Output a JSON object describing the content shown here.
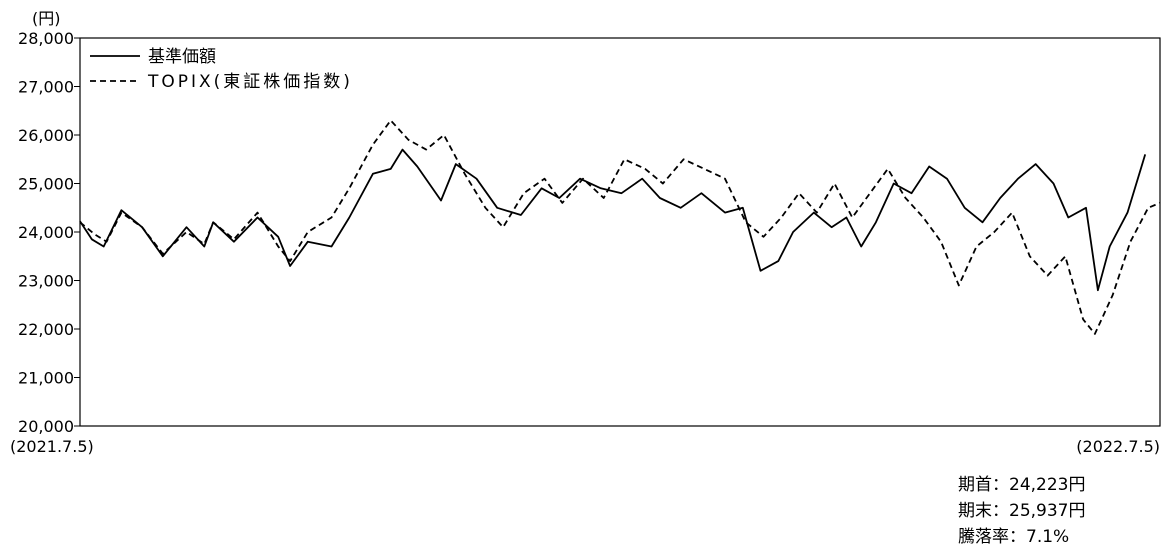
{
  "chart_data": {
    "type": "line",
    "ylabel": "(円)",
    "ylim": [
      20000,
      28000
    ],
    "yticks": [
      {
        "value": 20000,
        "label": "20,000"
      },
      {
        "value": 21000,
        "label": "21,000"
      },
      {
        "value": 22000,
        "label": "22,000"
      },
      {
        "value": 23000,
        "label": "23,000"
      },
      {
        "value": 24000,
        "label": "24,000"
      },
      {
        "value": 25000,
        "label": "25,000"
      },
      {
        "value": 26000,
        "label": "26,000"
      },
      {
        "value": 27000,
        "label": "27,000"
      },
      {
        "value": 28000,
        "label": "28,000"
      }
    ],
    "xlim": [
      "2021-07-05",
      "2022-07-05"
    ],
    "x_start_label": "(2021.7.5)",
    "x_end_label": "(2022.7.5)",
    "grid": false,
    "legend_position": "top-left",
    "series": [
      {
        "name": "基準価額",
        "style": "solid",
        "color": "#000000",
        "points": [
          [
            "2021-07-05",
            24223
          ],
          [
            "2021-07-09",
            23850
          ],
          [
            "2021-07-13",
            23700
          ],
          [
            "2021-07-19",
            24450
          ],
          [
            "2021-07-26",
            24100
          ],
          [
            "2021-08-02",
            23500
          ],
          [
            "2021-08-10",
            24100
          ],
          [
            "2021-08-16",
            23700
          ],
          [
            "2021-08-19",
            24200
          ],
          [
            "2021-08-26",
            23800
          ],
          [
            "2021-09-03",
            24300
          ],
          [
            "2021-09-10",
            23900
          ],
          [
            "2021-09-14",
            23300
          ],
          [
            "2021-09-20",
            23800
          ],
          [
            "2021-09-28",
            23700
          ],
          [
            "2021-10-04",
            24300
          ],
          [
            "2021-10-12",
            25200
          ],
          [
            "2021-10-18",
            25300
          ],
          [
            "2021-10-22",
            25700
          ],
          [
            "2021-10-27",
            25350
          ],
          [
            "2021-11-04",
            24650
          ],
          [
            "2021-11-09",
            25400
          ],
          [
            "2021-11-16",
            25100
          ],
          [
            "2021-11-23",
            24500
          ],
          [
            "2021-12-01",
            24350
          ],
          [
            "2021-12-08",
            24900
          ],
          [
            "2021-12-14",
            24700
          ],
          [
            "2021-12-21",
            25100
          ],
          [
            "2021-12-28",
            24900
          ],
          [
            "2022-01-04",
            24800
          ],
          [
            "2022-01-11",
            25100
          ],
          [
            "2022-01-17",
            24700
          ],
          [
            "2022-01-24",
            24500
          ],
          [
            "2022-01-31",
            24800
          ],
          [
            "2022-02-08",
            24400
          ],
          [
            "2022-02-14",
            24500
          ],
          [
            "2022-02-20",
            23200
          ],
          [
            "2022-02-26",
            23400
          ],
          [
            "2022-03-03",
            24000
          ],
          [
            "2022-03-10",
            24400
          ],
          [
            "2022-03-16",
            24100
          ],
          [
            "2022-03-21",
            24300
          ],
          [
            "2022-03-26",
            23700
          ],
          [
            "2022-03-31",
            24200
          ],
          [
            "2022-04-06",
            25000
          ],
          [
            "2022-04-12",
            24800
          ],
          [
            "2022-04-18",
            25350
          ],
          [
            "2022-04-24",
            25100
          ],
          [
            "2022-04-30",
            24500
          ],
          [
            "2022-05-06",
            24200
          ],
          [
            "2022-05-12",
            24700
          ],
          [
            "2022-05-18",
            25100
          ],
          [
            "2022-05-24",
            25400
          ],
          [
            "2022-05-30",
            25000
          ],
          [
            "2022-06-04",
            24300
          ],
          [
            "2022-06-10",
            24500
          ],
          [
            "2022-06-14",
            22800
          ],
          [
            "2022-06-18",
            23700
          ],
          [
            "2022-06-24",
            24400
          ],
          [
            "2022-06-30",
            25600
          ]
        ]
      },
      {
        "name": "TOPIX(東証株価指数)",
        "style": "dashed",
        "color": "#000000",
        "points": [
          [
            "2021-07-05",
            24200
          ],
          [
            "2021-07-10",
            23950
          ],
          [
            "2021-07-14",
            23800
          ],
          [
            "2021-07-19",
            24400
          ],
          [
            "2021-07-26",
            24100
          ],
          [
            "2021-08-02",
            23550
          ],
          [
            "2021-08-10",
            24000
          ],
          [
            "2021-08-16",
            23750
          ],
          [
            "2021-08-19",
            24200
          ],
          [
            "2021-08-26",
            23850
          ],
          [
            "2021-09-03",
            24400
          ],
          [
            "2021-09-10",
            23700
          ],
          [
            "2021-09-14",
            23400
          ],
          [
            "2021-09-20",
            24000
          ],
          [
            "2021-09-28",
            24300
          ],
          [
            "2021-10-04",
            24900
          ],
          [
            "2021-10-12",
            25800
          ],
          [
            "2021-10-18",
            26300
          ],
          [
            "2021-10-24",
            25900
          ],
          [
            "2021-10-30",
            25700
          ],
          [
            "2021-11-05",
            26000
          ],
          [
            "2021-11-12",
            25200
          ],
          [
            "2021-11-19",
            24500
          ],
          [
            "2021-11-25",
            24100
          ],
          [
            "2021-12-02",
            24800
          ],
          [
            "2021-12-09",
            25100
          ],
          [
            "2021-12-15",
            24600
          ],
          [
            "2021-12-22",
            25100
          ],
          [
            "2021-12-29",
            24700
          ],
          [
            "2022-01-05",
            25500
          ],
          [
            "2022-01-12",
            25300
          ],
          [
            "2022-01-18",
            25000
          ],
          [
            "2022-01-25",
            25500
          ],
          [
            "2022-02-01",
            25300
          ],
          [
            "2022-02-08",
            25100
          ],
          [
            "2022-02-15",
            24200
          ],
          [
            "2022-02-21",
            23900
          ],
          [
            "2022-02-27",
            24300
          ],
          [
            "2022-03-05",
            24800
          ],
          [
            "2022-03-11",
            24400
          ],
          [
            "2022-03-17",
            25000
          ],
          [
            "2022-03-23",
            24300
          ],
          [
            "2022-03-29",
            24800
          ],
          [
            "2022-04-04",
            25300
          ],
          [
            "2022-04-10",
            24700
          ],
          [
            "2022-04-16",
            24300
          ],
          [
            "2022-04-22",
            23800
          ],
          [
            "2022-04-28",
            22900
          ],
          [
            "2022-05-04",
            23700
          ],
          [
            "2022-05-10",
            24000
          ],
          [
            "2022-05-16",
            24400
          ],
          [
            "2022-05-22",
            23500
          ],
          [
            "2022-05-28",
            23100
          ],
          [
            "2022-06-03",
            23500
          ],
          [
            "2022-06-09",
            22200
          ],
          [
            "2022-06-13",
            21900
          ],
          [
            "2022-06-19",
            22700
          ],
          [
            "2022-06-25",
            23800
          ],
          [
            "2022-07-01",
            24500
          ],
          [
            "2022-07-05",
            24600
          ]
        ]
      }
    ],
    "annotations": [
      {
        "label": "期首：",
        "value": "24,223円"
      },
      {
        "label": "期末：",
        "value": "25,937円"
      },
      {
        "label": "騰落率：",
        "value": "7.1%"
      }
    ]
  }
}
